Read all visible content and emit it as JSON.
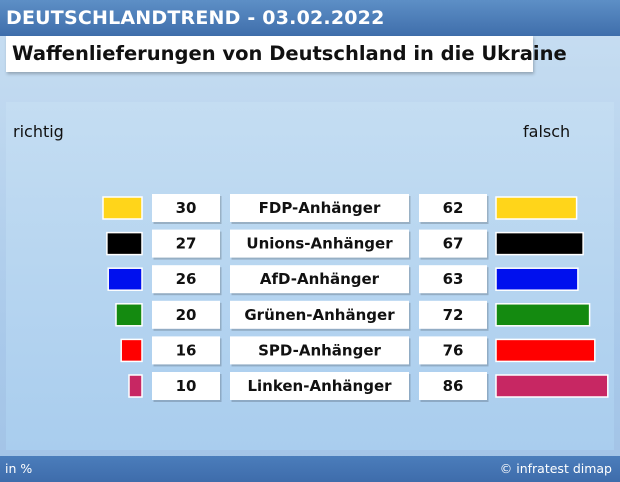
{
  "header": {
    "kicker": "DEUTSCHLANDTREND - 03.02.2022",
    "title": "Waffenlieferungen von Deutschland in die Ukraine"
  },
  "footer": {
    "unit": "in %",
    "source": "© infratest dimap"
  },
  "chart_data": {
    "type": "bar",
    "left_label": "richtig",
    "right_label": "falsch",
    "categories": [
      "FDP-Anhänger",
      "Unions-Anhänger",
      "AfD-Anhänger",
      "Grünen-Anhänger",
      "SPD-Anhänger",
      "Linken-Anhänger"
    ],
    "series": [
      {
        "name": "richtig",
        "values": [
          30,
          27,
          26,
          20,
          16,
          10
        ]
      },
      {
        "name": "falsch",
        "values": [
          62,
          67,
          63,
          72,
          76,
          86
        ]
      }
    ],
    "colors": [
      "#ffd51a",
      "#000000",
      "#0010ee",
      "#148a10",
      "#ff0000",
      "#c72763"
    ]
  }
}
